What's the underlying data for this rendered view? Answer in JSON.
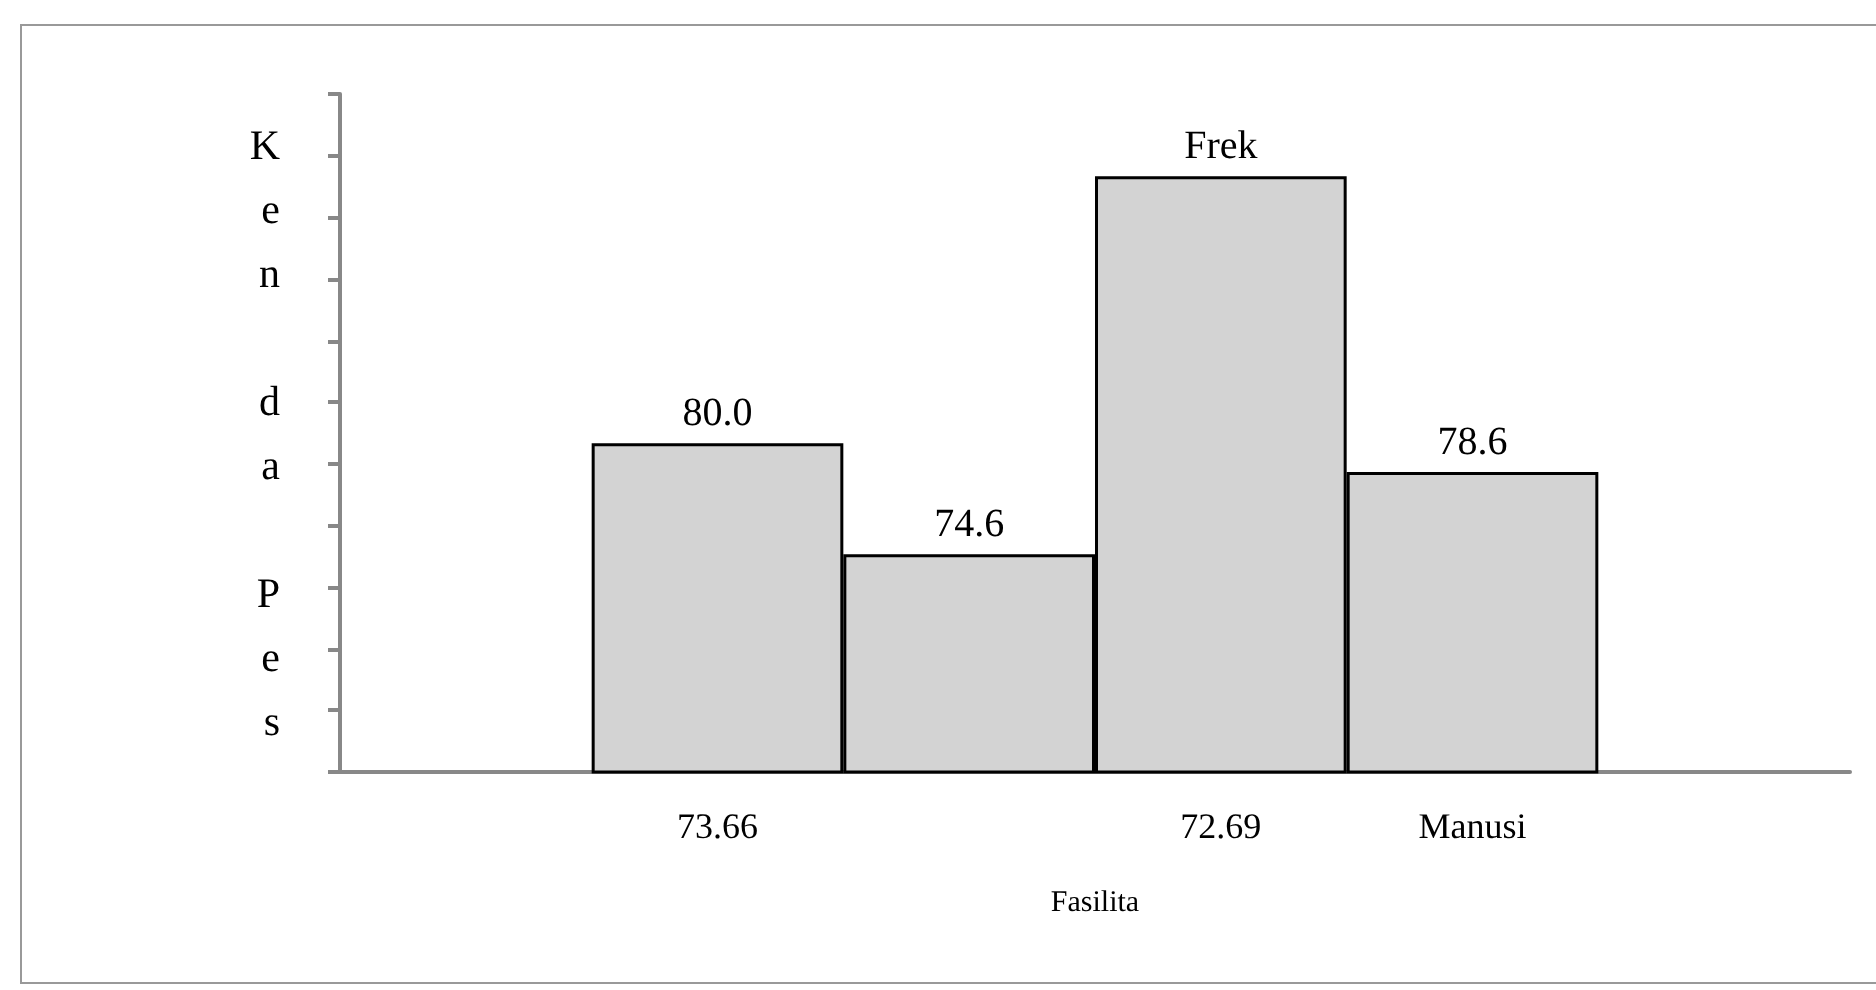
{
  "chart_data": {
    "type": "bar",
    "xlabel": "Fasilita",
    "ylabel": "Ken da Pes",
    "categories": [
      null,
      "73.66",
      null,
      "72.69",
      "Manusi",
      null
    ],
    "values": [
      null,
      80.0,
      74.6,
      93,
      78.6,
      null
    ],
    "value_labels": [
      null,
      "80.0",
      "74.6",
      "Frek",
      "78.6",
      null
    ],
    "ylim": [
      64,
      97
    ],
    "color": "#d3d3d3",
    "tick_labels": "x",
    "grid": false
  }
}
